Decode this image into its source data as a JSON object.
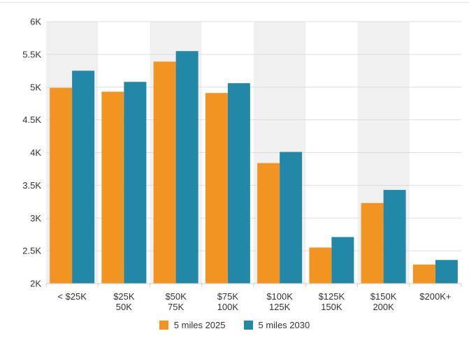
{
  "chart_data": {
    "type": "bar",
    "categories": [
      [
        "< $25K"
      ],
      [
        "$25K",
        "50K"
      ],
      [
        "$50K",
        "75K"
      ],
      [
        "$75K",
        "100K"
      ],
      [
        "$100K",
        "125K"
      ],
      [
        "$125K",
        "150K"
      ],
      [
        "$150K",
        "200K"
      ],
      [
        "$200K+"
      ]
    ],
    "series": [
      {
        "name": "5 miles 2025",
        "color": "#f39422",
        "values": [
          4990,
          4930,
          5390,
          4910,
          3840,
          2550,
          3230,
          2290
        ]
      },
      {
        "name": "5 miles 2030",
        "color": "#2387a8",
        "values": [
          5250,
          5080,
          5550,
          5060,
          4010,
          2710,
          3430,
          2360
        ]
      }
    ],
    "ylim": [
      2000,
      6000
    ],
    "yticks": [
      2000,
      2500,
      3000,
      3500,
      4000,
      4500,
      5000,
      5500,
      6000
    ],
    "ytick_labels": [
      "2K",
      "2.5K",
      "3K",
      "3.5K",
      "4K",
      "4.5K",
      "5K",
      "5.5K",
      "6K"
    ],
    "alternating_band_color": "#f0f0f0",
    "grid": true,
    "legend_position": "bottom-center",
    "title": "",
    "xlabel": "",
    "ylabel": ""
  }
}
